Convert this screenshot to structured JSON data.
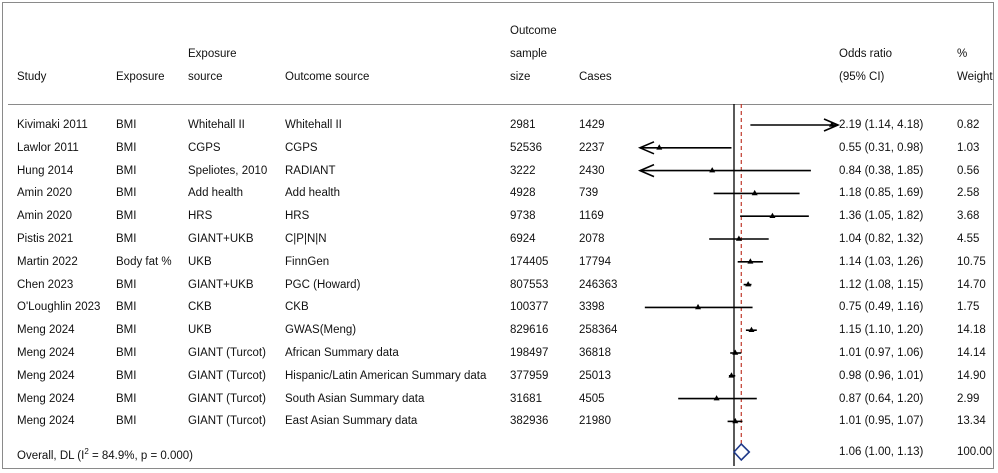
{
  "chart_data": {
    "type": "forest",
    "columns": {
      "study": "Study",
      "exposure": "Exposure",
      "exposure_source": [
        "Exposure",
        "source"
      ],
      "outcome_source": "Outcome source",
      "sample_size": [
        "Outcome",
        "sample",
        "size"
      ],
      "cases": "Cases",
      "or": [
        "Odds ratio",
        "(95% CI)"
      ],
      "weight": [
        "%",
        "Weight"
      ]
    },
    "rows": [
      {
        "study": "Kivimaki 2011",
        "exposure": "BMI",
        "exposure_source": "Whitehall II",
        "outcome_source": "Whitehall II",
        "sample_size": "2981",
        "cases": "1429",
        "or_text": "2.19 (1.14, 4.18)",
        "weight": "0.82",
        "or": 2.19,
        "lo": 1.14,
        "hi": 4.18
      },
      {
        "study": "Lawlor 2011",
        "exposure": "BMI",
        "exposure_source": "CGPS",
        "outcome_source": "CGPS",
        "sample_size": "52536",
        "cases": "2237",
        "or_text": "0.55 (0.31, 0.98)",
        "weight": "1.03",
        "or": 0.55,
        "lo": 0.31,
        "hi": 0.98
      },
      {
        "study": "Hung 2014",
        "exposure": "BMI",
        "exposure_source": "Speliotes, 2010",
        "outcome_source": "RADIANT",
        "sample_size": "3222",
        "cases": "2430",
        "or_text": "0.84 (0.38, 1.85)",
        "weight": "0.56",
        "or": 0.84,
        "lo": 0.38,
        "hi": 1.85
      },
      {
        "study": "Amin 2020",
        "exposure": "BMI",
        "exposure_source": "Add health",
        "outcome_source": "Add health",
        "sample_size": "4928",
        "cases": "739",
        "or_text": "1.18 (0.85, 1.69)",
        "weight": "2.58",
        "or": 1.18,
        "lo": 0.85,
        "hi": 1.69
      },
      {
        "study": "Amin 2020",
        "exposure": "BMI",
        "exposure_source": "HRS",
        "outcome_source": "HRS",
        "sample_size": "9738",
        "cases": "1169",
        "or_text": "1.36 (1.05, 1.82)",
        "weight": "3.68",
        "or": 1.36,
        "lo": 1.05,
        "hi": 1.82
      },
      {
        "study": "Pistis 2021",
        "exposure": "BMI",
        "exposure_source": "GIANT+UKB",
        "outcome_source": "C|P|N|N",
        "sample_size": "6924",
        "cases": "2078",
        "or_text": "1.04 (0.82, 1.32)",
        "weight": "4.55",
        "or": 1.04,
        "lo": 0.82,
        "hi": 1.32
      },
      {
        "study": "Martin 2022",
        "exposure": "Body fat %",
        "exposure_source": "UKB",
        "outcome_source": "FinnGen",
        "sample_size": "174405",
        "cases": "17794",
        "or_text": "1.14 (1.03, 1.26)",
        "weight": "10.75",
        "or": 1.14,
        "lo": 1.03,
        "hi": 1.26
      },
      {
        "study": "Chen 2023",
        "exposure": "BMI",
        "exposure_source": "GIANT+UKB",
        "outcome_source": "PGC (Howard)",
        "sample_size": "807553",
        "cases": "246363",
        "or_text": "1.12 (1.08, 1.15)",
        "weight": "14.70",
        "or": 1.12,
        "lo": 1.08,
        "hi": 1.15
      },
      {
        "study": "O'Loughlin 2023",
        "exposure": "BMI",
        "exposure_source": "CKB",
        "outcome_source": "CKB",
        "sample_size": "100377",
        "cases": "3398",
        "or_text": "0.75 (0.49, 1.16)",
        "weight": "1.75",
        "or": 0.75,
        "lo": 0.49,
        "hi": 1.16
      },
      {
        "study": "Meng 2024",
        "exposure": "BMI",
        "exposure_source": "UKB",
        "outcome_source": "GWAS(Meng)",
        "sample_size": "829616",
        "cases": "258364",
        "or_text": "1.15 (1.10, 1.20)",
        "weight": "14.18",
        "or": 1.15,
        "lo": 1.1,
        "hi": 1.2
      },
      {
        "study": "Meng 2024",
        "exposure": "BMI",
        "exposure_source": "GIANT (Turcot)",
        "outcome_source": "African Summary data",
        "sample_size": "198497",
        "cases": "36818",
        "or_text": "1.01 (0.97, 1.06)",
        "weight": "14.14",
        "or": 1.01,
        "lo": 0.97,
        "hi": 1.06
      },
      {
        "study": "Meng 2024",
        "exposure": "BMI",
        "exposure_source": "GIANT (Turcot)",
        "outcome_source": "Hispanic/Latin American Summary data",
        "sample_size": "377959",
        "cases": "25013",
        "or_text": "0.98 (0.96, 1.01)",
        "weight": "14.90",
        "or": 0.98,
        "lo": 0.96,
        "hi": 1.01
      },
      {
        "study": "Meng 2024",
        "exposure": "BMI",
        "exposure_source": "GIANT (Turcot)",
        "outcome_source": "South Asian Summary data",
        "sample_size": "31681",
        "cases": "4505",
        "or_text": "0.87 (0.64, 1.20)",
        "weight": "2.99",
        "or": 0.87,
        "lo": 0.64,
        "hi": 1.2
      },
      {
        "study": "Meng 2024",
        "exposure": "BMI",
        "exposure_source": "GIANT (Turcot)",
        "outcome_source": "East Asian Summary data",
        "sample_size": "382936",
        "cases": "21980",
        "or_text": "1.01 (0.95, 1.07)",
        "weight": "13.34",
        "or": 1.01,
        "lo": 0.95,
        "hi": 1.07
      }
    ],
    "overall": {
      "label_prefix": "Overall, DL (I",
      "label_sup": "2",
      "label_suffix": " = 84.9%, p = 0.000)",
      "or_text": "1.06 (1.00, 1.13)",
      "weight": "100.00",
      "or": 1.06,
      "lo": 1.0,
      "hi": 1.13
    },
    "scale": "log",
    "xlim": [
      0.5,
      2.0
    ],
    "null_line": 1,
    "colors": {
      "marker": "#000000",
      "null_line": "#000000",
      "overall_line": "#c0392b",
      "diamond": "#1f3a8a"
    }
  }
}
